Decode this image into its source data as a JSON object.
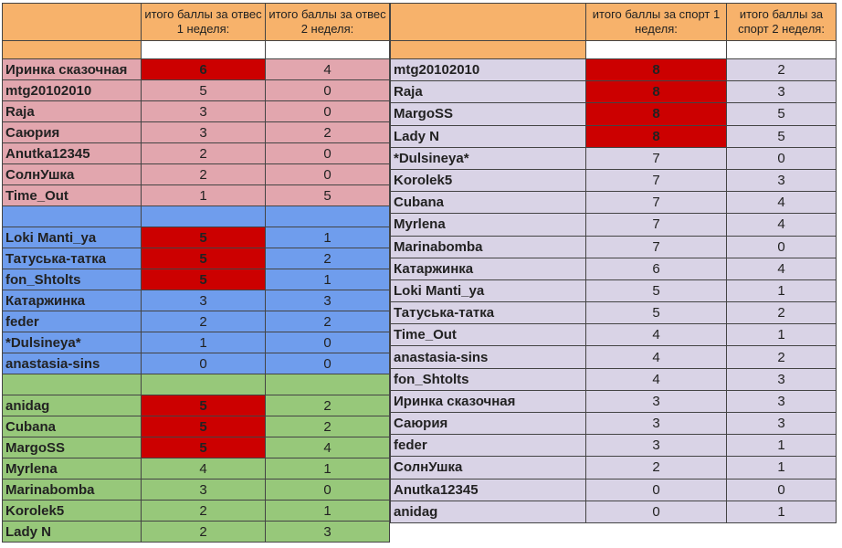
{
  "left_table": {
    "header": {
      "col1": "итого баллы за отвес 1 неделя:",
      "col2": "итого баллы за отвес 2 неделя:"
    },
    "groups": [
      {
        "rows": [
          {
            "name": "Иринка сказочная",
            "w1": "6",
            "w2": "4"
          },
          {
            "name": "mtg20102010",
            "w1": "5",
            "w2": "0"
          },
          {
            "name": "Raja",
            "w1": "3",
            "w2": "0"
          },
          {
            "name": "Саюрия",
            "w1": "3",
            "w2": "2"
          },
          {
            "name": "Anutka12345",
            "w1": "2",
            "w2": "0"
          },
          {
            "name": "СолнУшка",
            "w1": "2",
            "w2": "0"
          },
          {
            "name": "Time_Out",
            "w1": "1",
            "w2": "5"
          }
        ]
      },
      {
        "rows": [
          {
            "name": "Loki Manti_ya",
            "w1": "5",
            "w2": "1"
          },
          {
            "name": "Татуська-татка",
            "w1": "5",
            "w2": "2"
          },
          {
            "name": "fon_Shtolts",
            "w1": "5",
            "w2": "1"
          },
          {
            "name": "Катаржинка",
            "w1": "3",
            "w2": "3"
          },
          {
            "name": "feder",
            "w1": "2",
            "w2": "2"
          },
          {
            "name": "*Dulsineya*",
            "w1": "1",
            "w2": "0"
          },
          {
            "name": "anastasia-sins",
            "w1": "0",
            "w2": "0"
          }
        ]
      },
      {
        "rows": [
          {
            "name": "anidag",
            "w1": "5",
            "w2": "2"
          },
          {
            "name": "Cubana",
            "w1": "5",
            "w2": "2"
          },
          {
            "name": "MargoSS",
            "w1": "5",
            "w2": "4"
          },
          {
            "name": "Myrlena",
            "w1": "4",
            "w2": "1"
          },
          {
            "name": "Marinabomba",
            "w1": "3",
            "w2": "0"
          },
          {
            "name": "Korolek5",
            "w1": "2",
            "w2": "1"
          },
          {
            "name": "Lady N",
            "w1": "2",
            "w2": "3"
          }
        ]
      }
    ]
  },
  "right_table": {
    "header": {
      "col1": "итого баллы за спорт 1 неделя:",
      "col2": "итого баллы за спорт 2 неделя:"
    },
    "rows": [
      {
        "name": "mtg20102010",
        "w1": "8",
        "w2": "2"
      },
      {
        "name": "Raja",
        "w1": "8",
        "w2": "3"
      },
      {
        "name": "MargoSS",
        "w1": "8",
        "w2": "5"
      },
      {
        "name": "Lady N",
        "w1": "8",
        "w2": "5"
      },
      {
        "name": "*Dulsineya*",
        "w1": "7",
        "w2": "0"
      },
      {
        "name": "Korolek5",
        "w1": "7",
        "w2": "3"
      },
      {
        "name": "Cubana",
        "w1": "7",
        "w2": "4"
      },
      {
        "name": "Myrlena",
        "w1": "7",
        "w2": "4"
      },
      {
        "name": "Marinabomba",
        "w1": "7",
        "w2": "0"
      },
      {
        "name": "Катаржинка",
        "w1": "6",
        "w2": "4"
      },
      {
        "name": "Loki Manti_ya",
        "w1": "5",
        "w2": "1"
      },
      {
        "name": "Татуська-татка",
        "w1": "5",
        "w2": "2"
      },
      {
        "name": "Time_Out",
        "w1": "4",
        "w2": "1"
      },
      {
        "name": "anastasia-sins",
        "w1": "4",
        "w2": "2"
      },
      {
        "name": "fon_Shtolts",
        "w1": "4",
        "w2": "3"
      },
      {
        "name": "Иринка сказочная",
        "w1": "3",
        "w2": "3"
      },
      {
        "name": "Саюрия",
        "w1": "3",
        "w2": "3"
      },
      {
        "name": "feder",
        "w1": "3",
        "w2": "1"
      },
      {
        "name": "СолнУшка",
        "w1": "2",
        "w2": "1"
      },
      {
        "name": "Anutka12345",
        "w1": "0",
        "w2": "0"
      },
      {
        "name": "anidag",
        "w1": "0",
        "w2": "1"
      }
    ]
  },
  "colors": {
    "header": "#f7b26b",
    "group1": "#e2a6ae",
    "group2": "#6f9ded",
    "group3": "#97c87a",
    "right_rows": "#d9d3e6",
    "highlight": "#cc0000"
  }
}
